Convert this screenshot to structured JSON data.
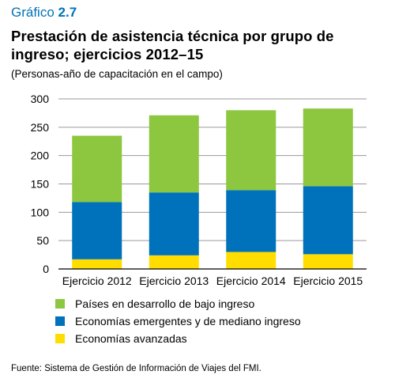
{
  "header": {
    "prefix": "Gráfico",
    "number": "2.7",
    "title": "Prestación de asistencia técnica por grupo de ingreso; ejercicios 2012–15",
    "subtitle": "(Personas-año de capacitación en el campo)"
  },
  "source": "Fuente: Sistema de Gestión de Información de Viajes del FMI.",
  "chart_data": {
    "type": "bar",
    "stacked": true,
    "categories": [
      "Ejercicio 2012",
      "Ejercicio 2013",
      "Ejercicio 2014",
      "Ejercicio 2015"
    ],
    "series": [
      {
        "name": "Economías avanzadas",
        "color": "#ffdd00",
        "values": [
          17,
          24,
          30,
          26
        ]
      },
      {
        "name": "Economías emergentes y de mediano ingreso",
        "color": "#0072bc",
        "values": [
          101,
          111,
          109,
          120
        ]
      },
      {
        "name": "Países en desarrollo de bajo ingreso",
        "color": "#8dc63f",
        "values": [
          117,
          136,
          141,
          137
        ]
      }
    ],
    "legend_order": [
      2,
      1,
      0
    ],
    "ylim": [
      0,
      300
    ],
    "yticks": [
      "0",
      "50",
      "100",
      "150",
      "200",
      "250",
      "300"
    ],
    "grid": true,
    "legend_position": "bottom"
  }
}
